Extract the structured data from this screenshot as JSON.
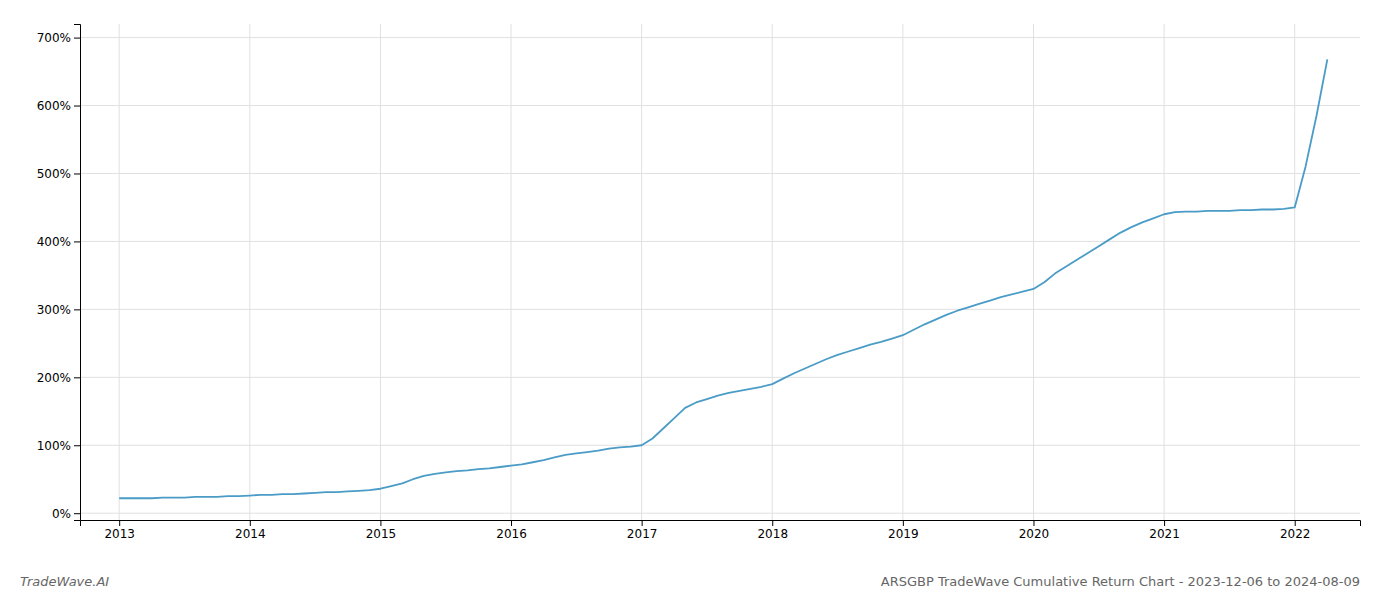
{
  "chart_data": {
    "type": "line",
    "title": "ARSGBP TradeWave Cumulative Return Chart - 2023-12-06 to 2024-08-09",
    "annotations": [
      {
        "text": "TradeWave.AI"
      }
    ],
    "color": "#4a9cc7",
    "grid": true,
    "xlim": [
      2012.7,
      2022.5
    ],
    "ylim": [
      -10,
      720
    ],
    "xticks": [
      2013,
      2014,
      2015,
      2016,
      2017,
      2018,
      2019,
      2020,
      2021,
      2022
    ],
    "yticks": [
      {
        "value": 0,
        "label": "0%"
      },
      {
        "value": 100,
        "label": "100%"
      },
      {
        "value": 200,
        "label": "200%"
      },
      {
        "value": 300,
        "label": "300%"
      },
      {
        "value": 400,
        "label": "400%"
      },
      {
        "value": 500,
        "label": "500%"
      },
      {
        "value": 600,
        "label": "600%"
      },
      {
        "value": 700,
        "label": "700%"
      }
    ],
    "x": [
      2013.0,
      2013.083,
      2013.167,
      2013.25,
      2013.333,
      2013.417,
      2013.5,
      2013.583,
      2013.667,
      2013.75,
      2013.833,
      2013.917,
      2014.0,
      2014.083,
      2014.167,
      2014.25,
      2014.333,
      2014.417,
      2014.5,
      2014.583,
      2014.667,
      2014.75,
      2014.833,
      2014.917,
      2015.0,
      2015.083,
      2015.167,
      2015.25,
      2015.333,
      2015.417,
      2015.5,
      2015.583,
      2015.667,
      2015.75,
      2015.833,
      2015.917,
      2016.0,
      2016.083,
      2016.167,
      2016.25,
      2016.333,
      2016.417,
      2016.5,
      2016.583,
      2016.667,
      2016.75,
      2016.833,
      2016.917,
      2017.0,
      2017.083,
      2017.167,
      2017.25,
      2017.333,
      2017.417,
      2017.5,
      2017.583,
      2017.667,
      2017.75,
      2017.833,
      2017.917,
      2018.0,
      2018.083,
      2018.167,
      2018.25,
      2018.333,
      2018.417,
      2018.5,
      2018.583,
      2018.667,
      2018.75,
      2018.833,
      2018.917,
      2019.0,
      2019.083,
      2019.167,
      2019.25,
      2019.333,
      2019.417,
      2019.5,
      2019.583,
      2019.667,
      2019.75,
      2019.833,
      2019.917,
      2020.0,
      2020.083,
      2020.167,
      2020.25,
      2020.333,
      2020.417,
      2020.5,
      2020.583,
      2020.667,
      2020.75,
      2020.833,
      2020.917,
      2021.0,
      2021.083,
      2021.167,
      2021.25,
      2021.333,
      2021.417,
      2021.5,
      2021.583,
      2021.667,
      2021.75,
      2021.833,
      2021.917,
      2022.0,
      2022.083,
      2022.167,
      2022.25
    ],
    "values": [
      22,
      22,
      22,
      22,
      23,
      23,
      23,
      24,
      24,
      24,
      25,
      25,
      26,
      27,
      27,
      28,
      28,
      29,
      30,
      31,
      31,
      32,
      33,
      34,
      36,
      40,
      44,
      50,
      55,
      58,
      60,
      62,
      63,
      65,
      66,
      68,
      70,
      72,
      75,
      78,
      82,
      86,
      88,
      90,
      92,
      95,
      97,
      98,
      100,
      110,
      125,
      140,
      155,
      163,
      168,
      173,
      177,
      180,
      183,
      186,
      190,
      198,
      206,
      213,
      220,
      227,
      233,
      238,
      243,
      248,
      252,
      257,
      262,
      270,
      278,
      285,
      292,
      298,
      303,
      308,
      313,
      318,
      322,
      326,
      330,
      340,
      353,
      363,
      373,
      383,
      393,
      403,
      413,
      421,
      428,
      434,
      440,
      443,
      444,
      444,
      445,
      445,
      445,
      446,
      446,
      447,
      447,
      448,
      450,
      510,
      585,
      668
    ]
  }
}
